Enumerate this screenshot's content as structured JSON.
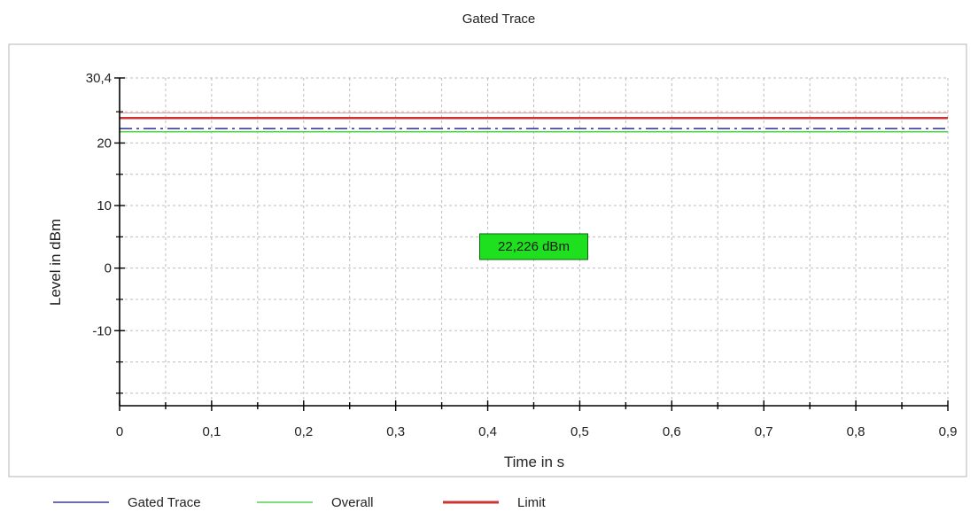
{
  "chart_data": {
    "type": "line",
    "title": "Gated Trace",
    "xlabel": "Time in s",
    "ylabel": "Level in dBm",
    "xlim": [
      0,
      0.9
    ],
    "ylim": [
      -22,
      30.4
    ],
    "x_ticks": [
      0,
      0.1,
      0.2,
      0.3,
      0.4,
      0.5,
      0.6,
      0.7,
      0.8,
      0.9
    ],
    "x_tick_labels": [
      "0",
      "0,1",
      "0,2",
      "0,3",
      "0,4",
      "0,5",
      "0,6",
      "0,7",
      "0,8",
      "0,9"
    ],
    "y_ticks": [
      30.4,
      20,
      10,
      0,
      -10
    ],
    "y_tick_labels": [
      "30,4",
      "20",
      "10",
      "0",
      "-10"
    ],
    "y_minor_ticks": [
      25,
      15,
      5,
      -5,
      -15,
      -20
    ],
    "grid": true,
    "legend_position": "bottom-left",
    "series": [
      {
        "name": "Gated Trace",
        "color": "#3c3c9c",
        "style": "dashdot",
        "x": [
          0,
          0.9
        ],
        "y": [
          22.3,
          22.3
        ]
      },
      {
        "name": "Overall",
        "color": "#55d055",
        "style": "solid",
        "x": [
          0,
          0.9
        ],
        "y": [
          21.8,
          21.8
        ]
      },
      {
        "name": "Limit",
        "color": "#cc3333",
        "style": "solid",
        "x": [
          0,
          0.9
        ],
        "y": [
          24,
          24
        ]
      }
    ],
    "limit_margin": {
      "y": 24.8,
      "color": "#e0a0a0"
    },
    "annotation": {
      "text": "22,226 dBm",
      "x": 0.45,
      "y": 3.5,
      "background": "#1ee01e"
    }
  }
}
